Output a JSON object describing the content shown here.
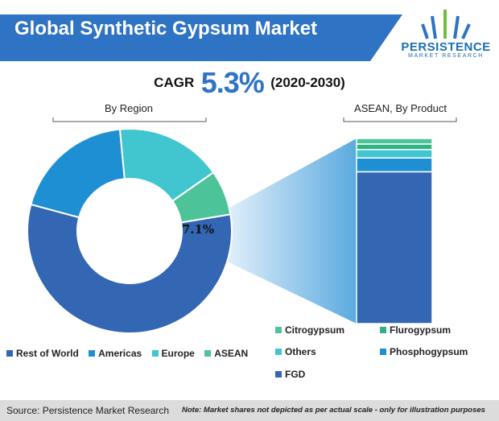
{
  "header": {
    "title": "Global Synthetic Gypsum Market",
    "logo_name": "PERSISTENCE",
    "logo_sub": "MARKET RESEARCH"
  },
  "cagr": {
    "label": "CAGR",
    "value": "5.3%",
    "period": "(2020-2030)"
  },
  "footer": {
    "source": "Source: Persistence Market Research",
    "note": "Note: Market shares not depicted as per actual scale - only for illustration purposes"
  },
  "colors": {
    "banner": "#2f73c4",
    "rest_of_world": "#3366b3",
    "americas": "#1f8fd4",
    "europe": "#41c6cf",
    "asean": "#4dc39a",
    "connector": "#5aaae0"
  },
  "chart_data": [
    {
      "type": "pie",
      "title": "By Region",
      "series": [
        {
          "name": "Rest of World",
          "value": 56.8
        },
        {
          "name": "Americas",
          "value": 19.3
        },
        {
          "name": "Europe",
          "value": 16.8
        },
        {
          "name": "ASEAN",
          "value": 7.1
        }
      ],
      "data_labels": [
        {
          "series": "ASEAN",
          "text": "7.1%"
        }
      ],
      "legend_position": "bottom"
    },
    {
      "type": "bar",
      "title": "ASEAN, By Product",
      "stacked": true,
      "series": [
        {
          "name": "FGD",
          "value": 82
        },
        {
          "name": "Phosphogypsum",
          "value": 7.5
        },
        {
          "name": "Others",
          "value": 4.5
        },
        {
          "name": "Flurogypsum",
          "value": 3
        },
        {
          "name": "Citrogypsum",
          "value": 3
        }
      ],
      "legend_position": "bottom"
    }
  ],
  "legend_right": {
    "items": [
      {
        "name": "Citrogypsum",
        "color": "#4dc39a"
      },
      {
        "name": "Flurogypsum",
        "color": "#2fb383"
      },
      {
        "name": "Others",
        "color": "#41c6cf"
      },
      {
        "name": "Phosphogypsum",
        "color": "#1f8fd4"
      },
      {
        "name": "FGD",
        "color": "#3366b3"
      }
    ]
  }
}
